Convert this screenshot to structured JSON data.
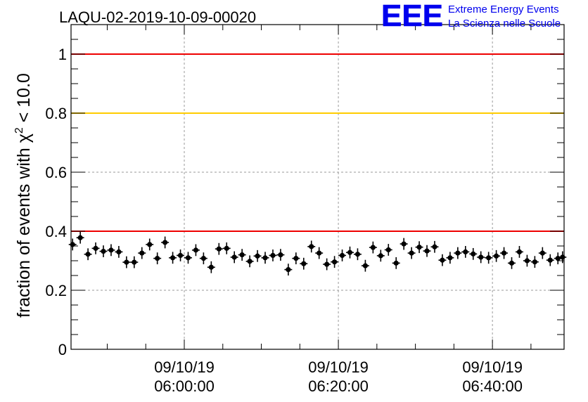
{
  "chart_data": {
    "type": "scatter",
    "title": "LAQU-02-2019-10-09-00020",
    "ylabel": "fraction of events with χ² < 10.0",
    "ylabel_parts": {
      "prefix": "fraction of events with ",
      "symbol": "χ",
      "exponent": "2",
      "suffix": " < 10.0"
    },
    "ylim": [
      0,
      1.1
    ],
    "xlim_minutes": [
      5.3,
      69.3
    ],
    "grid": true,
    "y_ticks": [
      {
        "value": 0,
        "label": "0"
      },
      {
        "value": 0.2,
        "label": "0.2"
      },
      {
        "value": 0.4,
        "label": "0.4"
      },
      {
        "value": 0.6,
        "label": "0.6"
      },
      {
        "value": 0.8,
        "label": "0.8"
      },
      {
        "value": 1,
        "label": "1"
      }
    ],
    "x_ticks": [
      {
        "minutes": 20,
        "date": "09/10/19",
        "time": "06:00:00"
      },
      {
        "minutes": 40,
        "date": "09/10/19",
        "time": "06:20:00"
      },
      {
        "minutes": 60,
        "date": "09/10/19",
        "time": "06:40:00"
      }
    ],
    "reference_lines": [
      {
        "y": 1.0,
        "color": "#ee0000"
      },
      {
        "y": 0.8,
        "color": "#ffcc00"
      },
      {
        "y": 0.4,
        "color": "#ee0000"
      }
    ],
    "series": [
      {
        "marker_color": "#000000",
        "y_error": 0.02,
        "points": [
          {
            "x": 5.5,
            "y": 0.355
          },
          {
            "x": 6.5,
            "y": 0.378
          },
          {
            "x": 7.5,
            "y": 0.322
          },
          {
            "x": 8.5,
            "y": 0.342
          },
          {
            "x": 9.5,
            "y": 0.332
          },
          {
            "x": 10.5,
            "y": 0.336
          },
          {
            "x": 11.5,
            "y": 0.33
          },
          {
            "x": 12.5,
            "y": 0.295
          },
          {
            "x": 13.5,
            "y": 0.295
          },
          {
            "x": 14.5,
            "y": 0.326
          },
          {
            "x": 15.5,
            "y": 0.355
          },
          {
            "x": 16.5,
            "y": 0.308
          },
          {
            "x": 17.5,
            "y": 0.362
          },
          {
            "x": 18.5,
            "y": 0.31
          },
          {
            "x": 19.5,
            "y": 0.318
          },
          {
            "x": 20.5,
            "y": 0.31
          },
          {
            "x": 21.5,
            "y": 0.336
          },
          {
            "x": 22.5,
            "y": 0.308
          },
          {
            "x": 23.5,
            "y": 0.278
          },
          {
            "x": 24.5,
            "y": 0.34
          },
          {
            "x": 25.5,
            "y": 0.342
          },
          {
            "x": 26.5,
            "y": 0.312
          },
          {
            "x": 27.5,
            "y": 0.32
          },
          {
            "x": 28.5,
            "y": 0.298
          },
          {
            "x": 29.5,
            "y": 0.316
          },
          {
            "x": 30.5,
            "y": 0.31
          },
          {
            "x": 31.5,
            "y": 0.318
          },
          {
            "x": 32.5,
            "y": 0.32
          },
          {
            "x": 33.5,
            "y": 0.27
          },
          {
            "x": 34.5,
            "y": 0.308
          },
          {
            "x": 35.5,
            "y": 0.29
          },
          {
            "x": 36.5,
            "y": 0.348
          },
          {
            "x": 37.5,
            "y": 0.326
          },
          {
            "x": 38.5,
            "y": 0.288
          },
          {
            "x": 39.5,
            "y": 0.296
          },
          {
            "x": 40.5,
            "y": 0.318
          },
          {
            "x": 41.5,
            "y": 0.328
          },
          {
            "x": 42.5,
            "y": 0.322
          },
          {
            "x": 43.5,
            "y": 0.283
          },
          {
            "x": 44.5,
            "y": 0.345
          },
          {
            "x": 45.5,
            "y": 0.317
          },
          {
            "x": 46.5,
            "y": 0.337
          },
          {
            "x": 47.5,
            "y": 0.292
          },
          {
            "x": 48.5,
            "y": 0.357
          },
          {
            "x": 49.5,
            "y": 0.326
          },
          {
            "x": 50.5,
            "y": 0.346
          },
          {
            "x": 51.5,
            "y": 0.333
          },
          {
            "x": 52.5,
            "y": 0.347
          },
          {
            "x": 53.5,
            "y": 0.302
          },
          {
            "x": 54.5,
            "y": 0.31
          },
          {
            "x": 55.5,
            "y": 0.326
          },
          {
            "x": 56.5,
            "y": 0.33
          },
          {
            "x": 57.5,
            "y": 0.323
          },
          {
            "x": 58.5,
            "y": 0.312
          },
          {
            "x": 59.5,
            "y": 0.31
          },
          {
            "x": 60.5,
            "y": 0.316
          },
          {
            "x": 61.5,
            "y": 0.326
          },
          {
            "x": 62.5,
            "y": 0.292
          },
          {
            "x": 63.5,
            "y": 0.33
          },
          {
            "x": 64.5,
            "y": 0.3
          },
          {
            "x": 65.5,
            "y": 0.296
          },
          {
            "x": 66.5,
            "y": 0.326
          },
          {
            "x": 67.5,
            "y": 0.302
          },
          {
            "x": 68.5,
            "y": 0.308
          },
          {
            "x": 69.1,
            "y": 0.312
          }
        ]
      }
    ]
  },
  "logo": {
    "text": "EEE",
    "line1": "Extreme Energy Events",
    "line2": "La Scienza nelle Scuole",
    "color": "#0000ee"
  }
}
